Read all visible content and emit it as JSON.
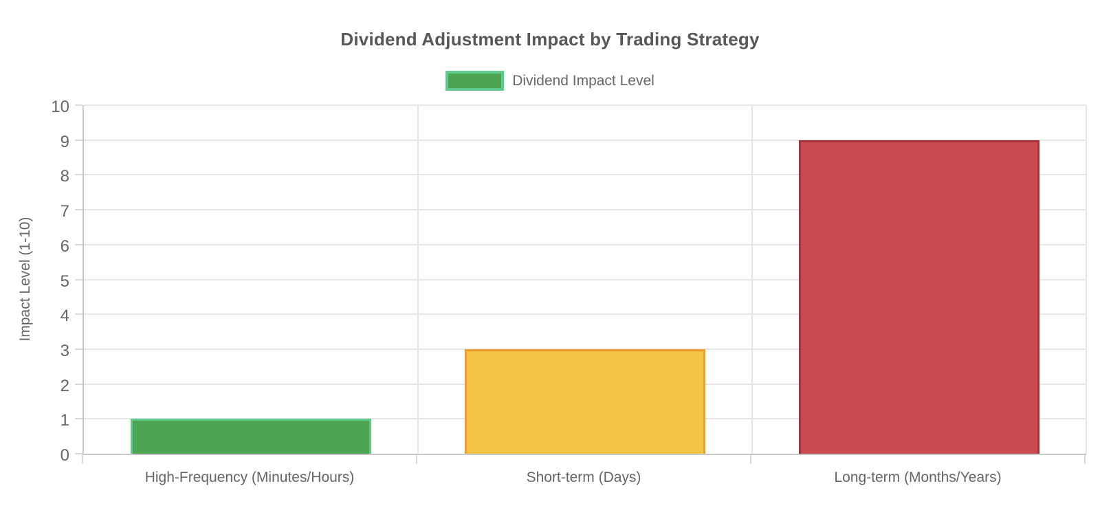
{
  "chart_data": {
    "type": "bar",
    "title": "Dividend Adjustment Impact by Trading Strategy",
    "legend": {
      "position": "top",
      "label": "Dividend Impact Level",
      "swatch_fill": "#4da453",
      "swatch_border": "#5fc98e"
    },
    "categories": [
      "High-Frequency (Minutes/Hours)",
      "Short-term (Days)",
      "Long-term (Months/Years)"
    ],
    "values": [
      1,
      3,
      9
    ],
    "bar_fill_colors": [
      "#4da453",
      "#f3c444",
      "#cb4a4f"
    ],
    "bar_border_colors": [
      "#5fc98e",
      "#ed9e2f",
      "#a93338"
    ],
    "xlabel": "",
    "ylabel": "Impact Level (1-10)",
    "ylim": [
      0,
      10
    ],
    "yticks": [
      0,
      1,
      2,
      3,
      4,
      5,
      6,
      7,
      8,
      9,
      10
    ],
    "grid": true,
    "colors": {
      "grid": "#e5e5e5",
      "axis": "#c9c9c9",
      "tick": "#d9d9d9",
      "text": "#666666",
      "title_text": "#58585b",
      "background": "#ffffff"
    }
  }
}
